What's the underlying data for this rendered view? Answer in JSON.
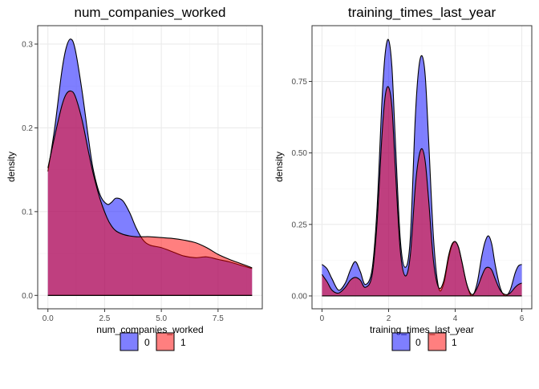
{
  "colors": {
    "series_0": "#0000FF",
    "series_1": "#FF0000",
    "fill_opacity": 0.5,
    "grid_major": "#ebebeb",
    "grid_minor": "#f5f5f5",
    "panel_border": "#333333"
  },
  "legend": {
    "items": [
      "0",
      "1"
    ],
    "position": "bottom"
  },
  "chart_data": [
    {
      "type": "area",
      "title": "num_companies_worked",
      "xlabel": "num_companies_worked",
      "ylabel": "density",
      "xlim": [
        -0.45,
        9.45
      ],
      "ylim": [
        -0.016,
        0.322
      ],
      "xticks": [
        0,
        2.5,
        5,
        7.5
      ],
      "xtick_labels": [
        "0.0",
        "2.5",
        "5.0",
        "7.5"
      ],
      "yticks": [
        0,
        0.1,
        0.2,
        0.3
      ],
      "ytick_labels": [
        "0.0",
        "0.1",
        "0.2",
        "0.3"
      ],
      "grid": true,
      "series": [
        {
          "name": "0",
          "x": [
            0,
            0.3,
            0.6,
            0.8,
            1.0,
            1.2,
            1.5,
            1.8,
            2.0,
            2.3,
            2.6,
            2.8,
            3.0,
            3.3,
            3.6,
            3.9,
            4.2,
            4.5,
            5.0,
            5.5,
            6.0,
            6.5,
            7.0,
            7.5,
            8.0,
            8.5,
            9.0
          ],
          "values": [
            0.148,
            0.2,
            0.265,
            0.295,
            0.306,
            0.294,
            0.245,
            0.185,
            0.15,
            0.12,
            0.109,
            0.111,
            0.116,
            0.113,
            0.099,
            0.08,
            0.066,
            0.06,
            0.057,
            0.052,
            0.047,
            0.045,
            0.046,
            0.043,
            0.04,
            0.036,
            0.032
          ]
        },
        {
          "name": "1",
          "x": [
            0,
            0.3,
            0.6,
            0.8,
            1.0,
            1.2,
            1.5,
            1.8,
            2.0,
            2.3,
            2.6,
            2.8,
            3.0,
            3.3,
            3.6,
            3.9,
            4.2,
            4.5,
            5.0,
            5.5,
            6.0,
            6.5,
            7.0,
            7.5,
            8.0,
            8.5,
            9.0
          ],
          "values": [
            0.152,
            0.19,
            0.225,
            0.24,
            0.244,
            0.238,
            0.21,
            0.17,
            0.145,
            0.115,
            0.093,
            0.083,
            0.077,
            0.073,
            0.071,
            0.07,
            0.07,
            0.07,
            0.069,
            0.068,
            0.066,
            0.063,
            0.057,
            0.049,
            0.043,
            0.038,
            0.033
          ]
        }
      ]
    },
    {
      "type": "area",
      "title": "training_times_last_year",
      "xlabel": "training_times_last_year",
      "ylabel": "density",
      "xlim": [
        -0.3,
        6.3
      ],
      "ylim": [
        -0.045,
        0.945
      ],
      "xticks": [
        0,
        2,
        4,
        6
      ],
      "xtick_labels": [
        "0",
        "2",
        "4",
        "6"
      ],
      "yticks": [
        0,
        0.25,
        0.5,
        0.75
      ],
      "ytick_labels": [
        "0.00",
        "0.25",
        "0.50",
        "0.75"
      ],
      "grid": true,
      "series": [
        {
          "name": "0",
          "x": [
            0,
            0.15,
            0.3,
            0.5,
            0.7,
            0.85,
            1.0,
            1.15,
            1.3,
            1.5,
            1.65,
            1.8,
            1.9,
            2.0,
            2.1,
            2.2,
            2.35,
            2.5,
            2.65,
            2.8,
            2.9,
            3.0,
            3.1,
            3.2,
            3.35,
            3.5,
            3.65,
            3.8,
            3.9,
            4.0,
            4.1,
            4.2,
            4.35,
            4.5,
            4.65,
            4.8,
            4.9,
            5.0,
            5.1,
            5.2,
            5.35,
            5.5,
            5.65,
            5.8,
            5.9,
            6.0
          ],
          "values": [
            0.11,
            0.095,
            0.06,
            0.02,
            0.045,
            0.09,
            0.12,
            0.085,
            0.04,
            0.09,
            0.3,
            0.68,
            0.85,
            0.895,
            0.8,
            0.55,
            0.2,
            0.1,
            0.2,
            0.62,
            0.79,
            0.84,
            0.77,
            0.55,
            0.2,
            0.03,
            0.04,
            0.13,
            0.175,
            0.19,
            0.17,
            0.12,
            0.04,
            0.0,
            0.04,
            0.14,
            0.19,
            0.21,
            0.18,
            0.11,
            0.03,
            0.0,
            0.02,
            0.08,
            0.105,
            0.11
          ]
        },
        {
          "name": "1",
          "x": [
            0,
            0.15,
            0.3,
            0.5,
            0.7,
            0.85,
            1.0,
            1.15,
            1.3,
            1.5,
            1.65,
            1.8,
            1.9,
            2.0,
            2.1,
            2.2,
            2.35,
            2.5,
            2.65,
            2.8,
            2.9,
            3.0,
            3.1,
            3.2,
            3.35,
            3.5,
            3.65,
            3.8,
            3.9,
            4.0,
            4.1,
            4.2,
            4.35,
            4.5,
            4.65,
            4.8,
            4.9,
            5.0,
            5.1,
            5.2,
            5.35,
            5.5,
            5.65,
            5.8,
            5.9,
            6.0
          ],
          "values": [
            0.075,
            0.05,
            0.02,
            0.01,
            0.03,
            0.055,
            0.065,
            0.055,
            0.03,
            0.07,
            0.25,
            0.56,
            0.7,
            0.73,
            0.66,
            0.45,
            0.16,
            0.07,
            0.14,
            0.38,
            0.48,
            0.515,
            0.47,
            0.34,
            0.12,
            0.03,
            0.05,
            0.14,
            0.18,
            0.19,
            0.17,
            0.12,
            0.04,
            0.005,
            0.025,
            0.07,
            0.095,
            0.1,
            0.09,
            0.06,
            0.02,
            0.005,
            0.01,
            0.03,
            0.04,
            0.045
          ]
        }
      ]
    }
  ]
}
